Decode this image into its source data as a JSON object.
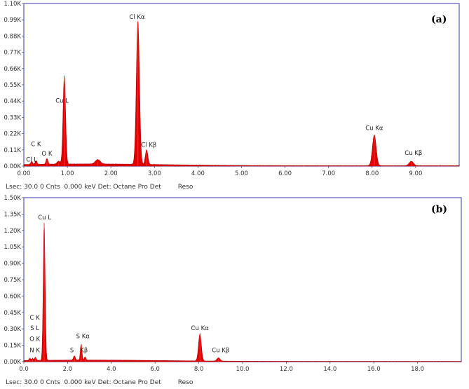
{
  "chart_data": [
    {
      "type": "line",
      "panel_label": "(a)",
      "footer": "Lsec: 30.0 0 Cnts  0.000 keV Det: Octane Pro Det",
      "footer_reso": "Reso",
      "xlim": [
        0,
        10.0
      ],
      "ylim": [
        0,
        1.1
      ],
      "x_ticks": [
        0,
        1,
        2,
        3,
        4,
        5,
        6,
        7,
        8,
        9
      ],
      "x_tick_labels": [
        "0.00",
        "1.00",
        "2.00",
        "3.00",
        "4.00",
        "5.00",
        "6.00",
        "7.00",
        "8.00",
        "9.00"
      ],
      "y_ticks": [
        0,
        0.11,
        0.22,
        0.33,
        0.44,
        0.55,
        0.66,
        0.77,
        0.88,
        0.99,
        1.1
      ],
      "y_tick_labels": [
        "0.00K",
        "0.11K",
        "0.22K",
        "0.33K",
        "0.44K",
        "0.55K",
        "0.66K",
        "0.77K",
        "0.88K",
        "0.99K",
        "1.10K"
      ],
      "peaks": [
        {
          "x": 0.18,
          "y": 0.02,
          "w": 0.03
        },
        {
          "x": 0.28,
          "y": 0.025,
          "w": 0.03
        },
        {
          "x": 0.53,
          "y": 0.04,
          "w": 0.03
        },
        {
          "x": 0.93,
          "y": 0.6,
          "w": 0.04
        },
        {
          "x": 0.8,
          "y": 0.02,
          "w": 0.05
        },
        {
          "x": 1.7,
          "y": 0.03,
          "w": 0.08
        },
        {
          "x": 2.62,
          "y": 0.98,
          "w": 0.05
        },
        {
          "x": 2.82,
          "y": 0.1,
          "w": 0.04
        },
        {
          "x": 8.05,
          "y": 0.21,
          "w": 0.06
        },
        {
          "x": 8.9,
          "y": 0.03,
          "w": 0.07
        }
      ],
      "annotations": [
        {
          "text": "C  K",
          "x": 0.28,
          "y": 0.135
        },
        {
          "text": "O  K",
          "x": 0.53,
          "y": 0.07
        },
        {
          "text": "Cl L",
          "x": 0.18,
          "y": 0.03
        },
        {
          "text": "Cu L",
          "x": 0.88,
          "y": 0.43
        },
        {
          "text": "Cl Kα",
          "x": 2.6,
          "y": 0.995
        },
        {
          "text": "Cl Kβ",
          "x": 2.87,
          "y": 0.13
        },
        {
          "text": "Cu Kα",
          "x": 8.05,
          "y": 0.245
        },
        {
          "text": "Cu Kβ",
          "x": 8.95,
          "y": 0.075
        }
      ]
    },
    {
      "type": "line",
      "panel_label": "(b)",
      "footer": "Lsec: 30.0 0 Cnts  0.000 keV Det: Octane Pro Det",
      "footer_reso": "Reso",
      "xlim": [
        0,
        20.0
      ],
      "ylim": [
        0,
        1.5
      ],
      "x_ticks": [
        0,
        2,
        4,
        6,
        8,
        10,
        12,
        14,
        16,
        18
      ],
      "x_tick_labels": [
        "0.0",
        "2.0",
        "4.0",
        "6.0",
        "8.0",
        "10.0",
        "12.0",
        "14.0",
        "16.0",
        "18.0"
      ],
      "y_ticks": [
        0,
        0.15,
        0.3,
        0.45,
        0.6,
        0.75,
        0.9,
        1.05,
        1.2,
        1.35,
        1.5
      ],
      "y_tick_labels": [
        "0.00K",
        "0.15K",
        "0.30K",
        "0.45K",
        "0.60K",
        "0.75K",
        "0.90K",
        "1.05K",
        "1.20K",
        "1.35K",
        "1.50K"
      ],
      "peaks": [
        {
          "x": 0.28,
          "y": 0.02,
          "w": 0.05
        },
        {
          "x": 0.4,
          "y": 0.02,
          "w": 0.05
        },
        {
          "x": 0.53,
          "y": 0.03,
          "w": 0.05
        },
        {
          "x": 0.93,
          "y": 1.27,
          "w": 0.06
        },
        {
          "x": 2.31,
          "y": 0.04,
          "w": 0.06
        },
        {
          "x": 2.62,
          "y": 0.15,
          "w": 0.05
        },
        {
          "x": 2.8,
          "y": 0.03,
          "w": 0.05
        },
        {
          "x": 8.05,
          "y": 0.25,
          "w": 0.09
        },
        {
          "x": 8.9,
          "y": 0.03,
          "w": 0.1
        }
      ],
      "annotations": [
        {
          "text": "Cu L",
          "x": 0.95,
          "y": 1.3
        },
        {
          "text": "C  K",
          "x": 0.5,
          "y": 0.385
        },
        {
          "text": "S  L",
          "x": 0.5,
          "y": 0.29
        },
        {
          "text": "O  K",
          "x": 0.5,
          "y": 0.19
        },
        {
          "text": "N  K",
          "x": 0.5,
          "y": 0.085
        },
        {
          "text": "S  Kα",
          "x": 2.7,
          "y": 0.215
        },
        {
          "text": "S",
          "x": 2.2,
          "y": 0.085
        },
        {
          "text": "Kβ",
          "x": 2.75,
          "y": 0.085
        },
        {
          "text": "Cu Kα",
          "x": 8.05,
          "y": 0.29
        },
        {
          "text": "Cu Kβ",
          "x": 9.0,
          "y": 0.085
        }
      ]
    }
  ]
}
